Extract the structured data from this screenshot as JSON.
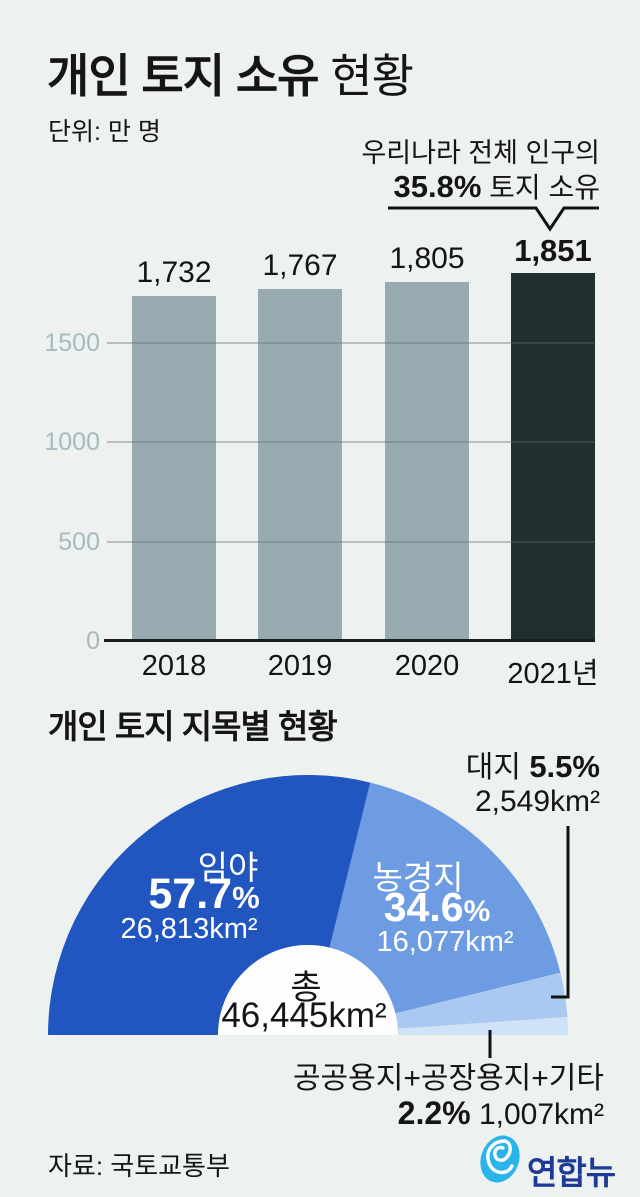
{
  "labels": {
    "pct_sign": "%"
  },
  "header": {
    "title_strong": "개인 토지 소유",
    "title_rest": " 현황",
    "unit": "단위: 만 명"
  },
  "annotation": {
    "line1": "우리나라 전체 인구의",
    "pct": "35.8",
    "suffix": " 토지 소유"
  },
  "section2_title": "개인 토지 지목별 현황",
  "chart_data": [
    {
      "type": "bar",
      "title": "개인 토지 소유 현황",
      "unit": "만 명",
      "categories": [
        "2018",
        "2019",
        "2020",
        "2021년"
      ],
      "values": [
        1732,
        1767,
        1805,
        1851
      ],
      "value_labels": [
        "1,732",
        "1,767",
        "1,805",
        "1,851"
      ],
      "highlight_index": 3,
      "bar_colors": [
        "#98abb0",
        "#98abb0",
        "#98abb0",
        "#1f302f"
      ],
      "ylim": [
        0,
        1900
      ],
      "yticks": [
        0,
        500,
        1000,
        1500
      ],
      "grid": true,
      "annotation": "우리나라 전체 인구의 35.8% 토지 소유"
    },
    {
      "type": "pie",
      "shape": "half-donut",
      "title": "개인 토지 지목별 현황",
      "slices": [
        {
          "label": "임야",
          "pct": 57.7,
          "area": "26,813km²",
          "color": "#2156c0"
        },
        {
          "label": "농경지",
          "pct": 34.6,
          "area": "16,077km²",
          "color": "#6d9ce2"
        },
        {
          "label": "대지",
          "pct": 5.5,
          "area": "2,549km²",
          "color": "#a9c9f0"
        },
        {
          "label": "공공용지+공장용지+기타",
          "pct": 2.2,
          "area": "1,007km²",
          "color": "#cfe2f8"
        }
      ],
      "total_label": "총",
      "total_value": "46,445km²"
    }
  ],
  "footer": {
    "source": "자료: 국토교통부",
    "logo_text": "연합뉴스"
  }
}
